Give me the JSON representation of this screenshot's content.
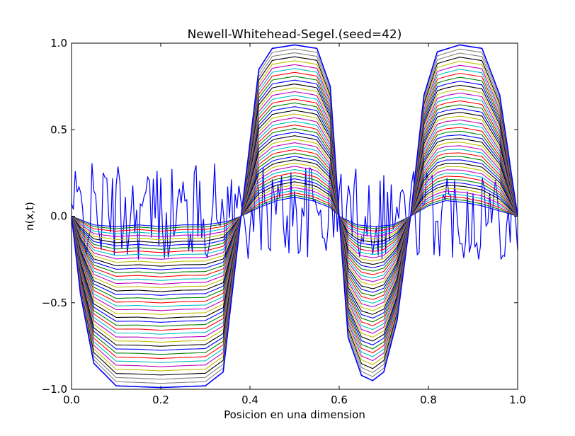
{
  "chart_data": {
    "type": "line",
    "title": "Newell-Whitehead-Segel.(seed=42)",
    "xlabel": "Posicion en una dimension",
    "ylabel": "n(x,t)",
    "xlim": [
      0.0,
      1.0
    ],
    "ylim": [
      -1.0,
      1.0
    ],
    "x_ticks": [
      "0.0",
      "0.2",
      "0.4",
      "0.6",
      "0.8",
      "1.0"
    ],
    "y_ticks": [
      "−1.0",
      "−0.5",
      "0.0",
      "0.5",
      "1.0"
    ],
    "grid": false,
    "legend": "none",
    "color_cycle": [
      "#0000ff",
      "#008000",
      "#ff0000",
      "#00bfbf",
      "#bf00bf",
      "#bfbf00",
      "#000000"
    ],
    "initial_noise_color": "#0000ff",
    "n_curves": 45,
    "zero_crossings_x": [
      0.0,
      0.38,
      0.6,
      0.76,
      1.0
    ],
    "final_state": {
      "x": [
        0.0,
        0.02,
        0.05,
        0.1,
        0.2,
        0.3,
        0.34,
        0.38,
        0.42,
        0.45,
        0.5,
        0.55,
        0.58,
        0.6,
        0.62,
        0.65,
        0.675,
        0.7,
        0.73,
        0.76,
        0.79,
        0.82,
        0.87,
        0.92,
        0.96,
        0.98,
        1.0
      ],
      "y": [
        0.0,
        -0.45,
        -0.85,
        -0.98,
        -0.99,
        -0.98,
        -0.9,
        0.0,
        0.85,
        0.97,
        0.99,
        0.97,
        0.75,
        0.0,
        -0.7,
        -0.92,
        -0.95,
        -0.9,
        -0.6,
        0.0,
        0.7,
        0.95,
        0.99,
        0.97,
        0.7,
        0.35,
        0.0
      ]
    },
    "early_state": {
      "x": [
        0.0,
        0.05,
        0.1,
        0.15,
        0.2,
        0.25,
        0.3,
        0.35,
        0.38,
        0.42,
        0.46,
        0.5,
        0.54,
        0.58,
        0.6,
        0.64,
        0.68,
        0.72,
        0.76,
        0.8,
        0.84,
        0.88,
        0.92,
        0.96,
        1.0
      ],
      "y": [
        0.0,
        -0.05,
        -0.06,
        -0.05,
        -0.06,
        -0.05,
        -0.05,
        -0.03,
        0.0,
        0.05,
        0.09,
        0.11,
        0.09,
        0.05,
        0.0,
        -0.05,
        -0.06,
        -0.05,
        0.0,
        0.06,
        0.09,
        0.08,
        0.06,
        0.03,
        0.0
      ]
    }
  }
}
